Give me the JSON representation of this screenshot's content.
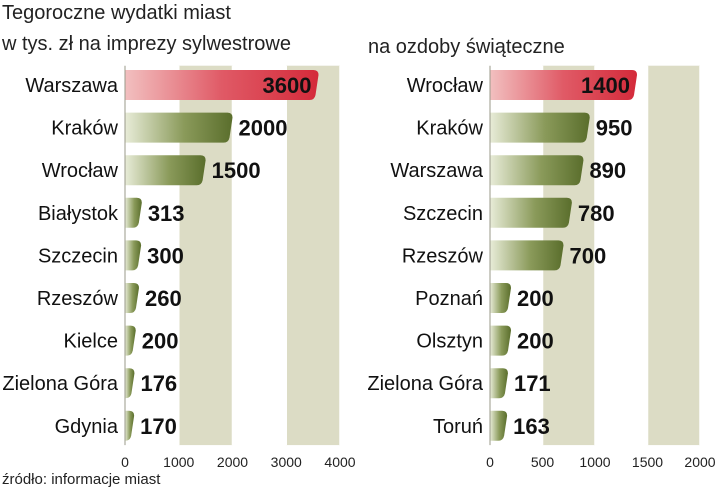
{
  "title_line1": "Tegoroczne wydatki miast",
  "source": "źródło: informacje miast",
  "colors": {
    "highlight": "#d42a3a",
    "bar": "#5a6e2c",
    "band": "#dcdcc5"
  },
  "chart_data": [
    {
      "type": "bar",
      "title": "w tys. zł na imprezy sylwestrowe",
      "categories": [
        "Warszawa",
        "Kraków",
        "Wrocław",
        "Białystok",
        "Szczecin",
        "Rzeszów",
        "Kielce",
        "Zielona Góra",
        "Gdynia"
      ],
      "values": [
        3600,
        2000,
        1500,
        313,
        300,
        260,
        200,
        176,
        170
      ],
      "value_labels": [
        "3600",
        "2000",
        "1500",
        "313",
        "300",
        "260",
        "200",
        "176",
        "170"
      ],
      "xlim": [
        0,
        4000
      ],
      "ticks": [
        0,
        1000,
        2000,
        3000,
        4000
      ],
      "tick_labels": [
        "0",
        "1000",
        "2000",
        "3000",
        "4000"
      ],
      "highlight_index": 0,
      "orientation": "horizontal"
    },
    {
      "type": "bar",
      "title": "na ozdoby świąteczne",
      "categories": [
        "Wrocław",
        "Kraków",
        "Warszawa",
        "Szczecin",
        "Rzeszów",
        "Poznań",
        "Olsztyn",
        "Zielona Góra",
        "Toruń"
      ],
      "values": [
        1400,
        950,
        890,
        780,
        700,
        200,
        200,
        171,
        163
      ],
      "value_labels": [
        "1400",
        "950",
        "890",
        "780",
        "700",
        "200",
        "200",
        "171",
        "163"
      ],
      "xlim": [
        0,
        2000
      ],
      "ticks": [
        0,
        500,
        1000,
        1500,
        2000
      ],
      "tick_labels": [
        "0",
        "500",
        "1000",
        "1500",
        "2000"
      ],
      "highlight_index": 0,
      "orientation": "horizontal"
    }
  ]
}
